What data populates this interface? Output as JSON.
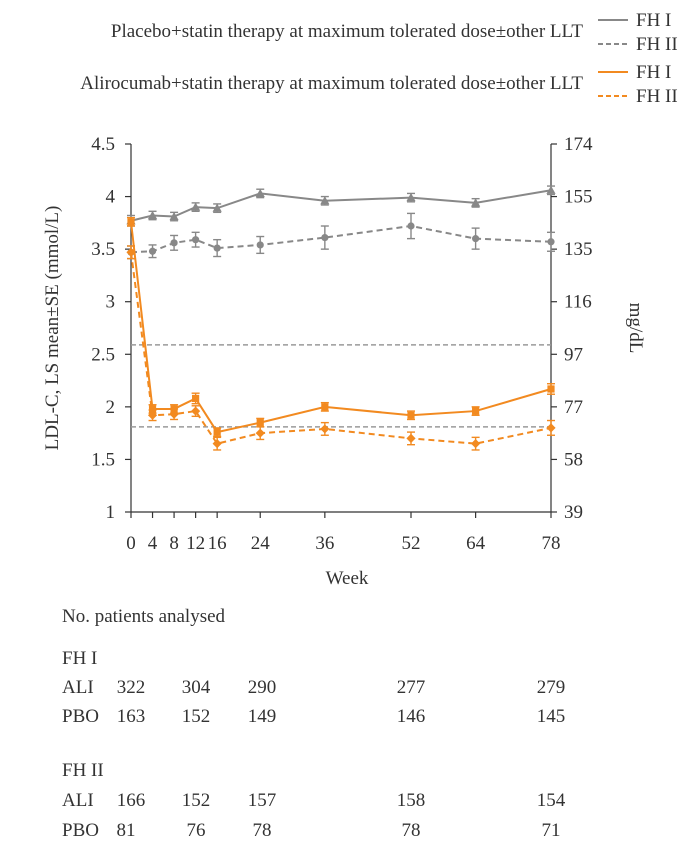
{
  "chart_data": {
    "type": "line",
    "xlabel": "Week",
    "ylabel": "LDL-C, LS mean±SE (mmol/L)",
    "y2label": "mg/dL",
    "ylim": [
      1,
      4.5
    ],
    "y_ticks": [
      "1",
      "1.5",
      "2",
      "2.5",
      "3",
      "3.5",
      "4",
      "4.5"
    ],
    "y2_ticks": [
      "39",
      "58",
      "77",
      "97",
      "116",
      "135",
      "155",
      "174"
    ],
    "x_ticks": [
      "0",
      "4",
      "8",
      "12",
      "16",
      "24",
      "36",
      "52",
      "64",
      "78"
    ],
    "x_tick_values": [
      0,
      4,
      8,
      12,
      16,
      24,
      36,
      52,
      64,
      78
    ],
    "reference_lines": [
      2.59,
      1.81
    ],
    "legend": {
      "placebo_label": "Placebo+statin therapy at maximum tolerated dose±other LLT",
      "alirocumab_label": "Alirocumab+statin therapy at maximum tolerated dose±other LLT",
      "fh1": "FH I",
      "fh2": "FH II"
    },
    "series": [
      {
        "name": "Placebo FH I",
        "color": "#888888",
        "dashed": false,
        "marker": "triangle",
        "x": [
          0,
          4,
          8,
          12,
          16,
          24,
          36,
          52,
          64,
          78
        ],
        "y": [
          3.77,
          3.82,
          3.81,
          3.9,
          3.89,
          4.03,
          3.96,
          3.99,
          3.94,
          4.06
        ],
        "se": [
          0.05,
          0.04,
          0.04,
          0.04,
          0.04,
          0.04,
          0.04,
          0.04,
          0.04,
          0.04
        ]
      },
      {
        "name": "Placebo FH II",
        "color": "#888888",
        "dashed": true,
        "marker": "circle",
        "x": [
          0,
          4,
          8,
          12,
          16,
          24,
          36,
          52,
          64,
          78
        ],
        "y": [
          3.47,
          3.48,
          3.56,
          3.59,
          3.51,
          3.54,
          3.61,
          3.72,
          3.6,
          3.57
        ],
        "se": [
          0.06,
          0.06,
          0.07,
          0.07,
          0.08,
          0.08,
          0.11,
          0.12,
          0.1,
          0.09
        ]
      },
      {
        "name": "Alirocumab FH I",
        "color": "#f28a20",
        "dashed": false,
        "marker": "square",
        "x": [
          0,
          4,
          8,
          12,
          16,
          24,
          36,
          52,
          64,
          78
        ],
        "y": [
          3.76,
          1.98,
          1.98,
          2.08,
          1.76,
          1.85,
          2.0,
          1.92,
          1.96,
          2.17
        ],
        "se": [
          0.04,
          0.04,
          0.04,
          0.05,
          0.04,
          0.04,
          0.04,
          0.04,
          0.04,
          0.05
        ]
      },
      {
        "name": "Alirocumab FH II",
        "color": "#f28a20",
        "dashed": true,
        "marker": "diamond",
        "x": [
          0,
          4,
          8,
          12,
          16,
          24,
          36,
          52,
          64,
          78
        ],
        "y": [
          3.47,
          1.92,
          1.93,
          1.96,
          1.65,
          1.75,
          1.79,
          1.7,
          1.65,
          1.8
        ],
        "se": [
          0.06,
          0.05,
          0.05,
          0.05,
          0.06,
          0.06,
          0.06,
          0.06,
          0.06,
          0.07
        ]
      }
    ]
  },
  "table": {
    "title": "No. patients analysed",
    "groups": [
      {
        "label": "FH I",
        "rows": [
          {
            "arm": "ALI",
            "values": [
              "322",
              "304",
              "290",
              "277",
              "279"
            ]
          },
          {
            "arm": "PBO",
            "values": [
              "163",
              "152",
              "149",
              "146",
              "145"
            ]
          }
        ]
      },
      {
        "label": "FH II",
        "rows": [
          {
            "arm": "ALI",
            "values": [
              "166",
              "152",
              "157",
              "158",
              "154"
            ]
          },
          {
            "arm": "PBO",
            "values": [
              "81",
              "76",
              "78",
              "78",
              "71"
            ]
          }
        ]
      }
    ]
  }
}
